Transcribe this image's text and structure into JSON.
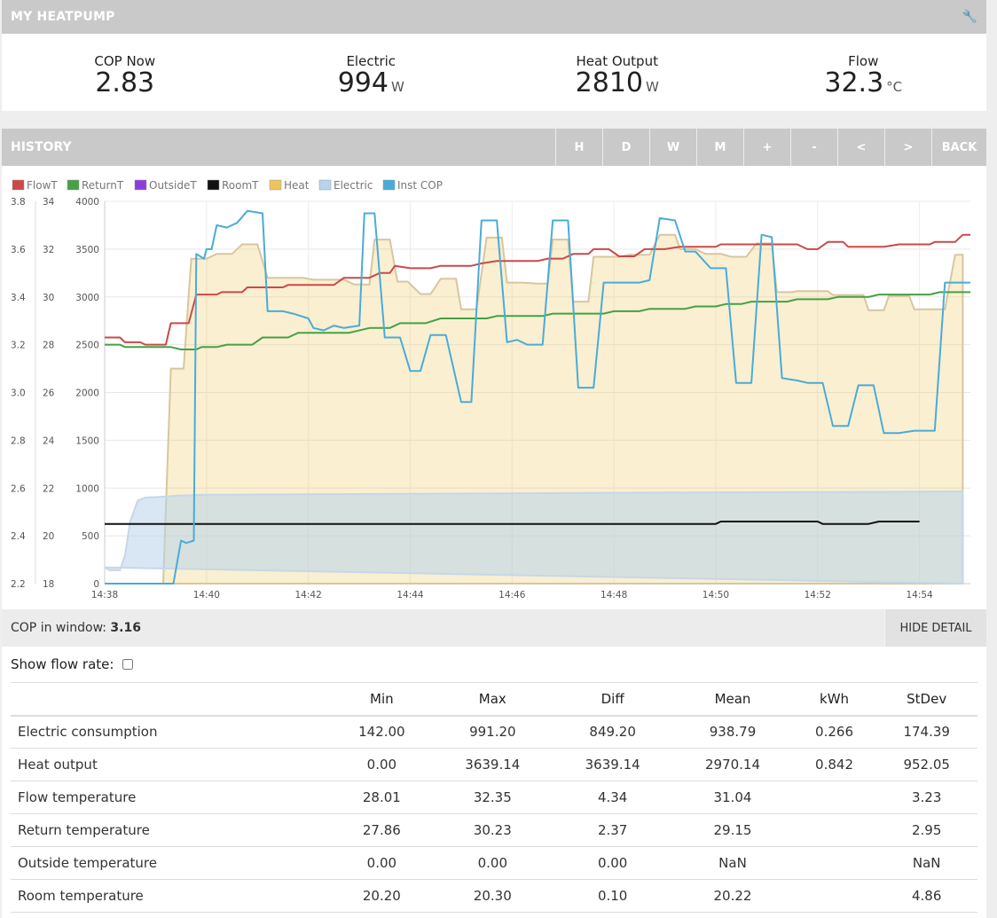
{
  "app": {
    "title": "MY HEATPUMP",
    "settings_icon": "wrench-icon"
  },
  "stats": [
    {
      "label": "COP Now",
      "value": "2.83",
      "unit": ""
    },
    {
      "label": "Electric",
      "value": "994",
      "unit": "W"
    },
    {
      "label": "Heat Output",
      "value": "2810",
      "unit": "W"
    },
    {
      "label": "Flow",
      "value": "32.3",
      "unit": "°C"
    }
  ],
  "history": {
    "title": "HISTORY",
    "buttons": [
      "H",
      "D",
      "W",
      "M",
      "+",
      "-",
      "<",
      ">",
      "BACK"
    ]
  },
  "chart_data": {
    "type": "line",
    "legend": [
      {
        "name": "FlowT",
        "color": "#c94a4a"
      },
      {
        "name": "ReturnT",
        "color": "#45a145"
      },
      {
        "name": "OutsideT",
        "color": "#8a40d8"
      },
      {
        "name": "RoomT",
        "color": "#111111"
      },
      {
        "name": "Heat",
        "color": "#edc55a"
      },
      {
        "name": "Electric",
        "color": "#b8d4ea"
      },
      {
        "name": "Inst COP",
        "color": "#49acd8"
      }
    ],
    "legend_position": "top-left",
    "x_ticks": [
      "14:38",
      "14:40",
      "14:42",
      "14:44",
      "14:46",
      "14:48",
      "14:50",
      "14:52",
      "14:54"
    ],
    "x_range_minutes": [
      0,
      17
    ],
    "y_cop_ticks": [
      "3.8",
      "3.6",
      "3.4",
      "3.2",
      "3.0",
      "2.8",
      "2.6",
      "2.4",
      "2.2"
    ],
    "y_cop_range": [
      2.2,
      3.8
    ],
    "y_temp_ticks": [
      "34",
      "32",
      "30",
      "28",
      "26",
      "24",
      "22",
      "20",
      "18"
    ],
    "y_temp_range": [
      18,
      34
    ],
    "y_power_ticks": [
      "4000",
      "3500",
      "3000",
      "2500",
      "2000",
      "1500",
      "1000",
      "500",
      "0"
    ],
    "y_power_range": [
      0,
      4000
    ],
    "grid": true,
    "series": [
      {
        "name": "FlowT",
        "axis": "temp",
        "points": [
          [
            0,
            28.3
          ],
          [
            0.3,
            28.3
          ],
          [
            0.4,
            28.1
          ],
          [
            0.7,
            28.1
          ],
          [
            0.8,
            28.0
          ],
          [
            1.2,
            28.0
          ],
          [
            1.3,
            28.9
          ],
          [
            1.65,
            28.9
          ],
          [
            1.8,
            30.1
          ],
          [
            2.2,
            30.1
          ],
          [
            2.3,
            30.2
          ],
          [
            2.7,
            30.2
          ],
          [
            2.8,
            30.4
          ],
          [
            3.5,
            30.4
          ],
          [
            3.6,
            30.5
          ],
          [
            4.5,
            30.5
          ],
          [
            4.7,
            30.8
          ],
          [
            5.2,
            30.8
          ],
          [
            5.4,
            31.0
          ],
          [
            5.6,
            31.0
          ],
          [
            5.7,
            31.3
          ],
          [
            6.0,
            31.2
          ],
          [
            6.4,
            31.2
          ],
          [
            6.6,
            31.3
          ],
          [
            7.2,
            31.3
          ],
          [
            7.4,
            31.4
          ],
          [
            7.7,
            31.5
          ],
          [
            8.5,
            31.5
          ],
          [
            8.7,
            31.6
          ],
          [
            9.0,
            31.6
          ],
          [
            9.2,
            31.8
          ],
          [
            9.5,
            31.8
          ],
          [
            9.6,
            32.0
          ],
          [
            9.9,
            32.0
          ],
          [
            10.1,
            31.7
          ],
          [
            10.4,
            31.7
          ],
          [
            10.6,
            32.0
          ],
          [
            11.0,
            32.0
          ],
          [
            11.3,
            32.1
          ],
          [
            12.0,
            32.1
          ],
          [
            12.1,
            32.2
          ],
          [
            13.0,
            32.2
          ],
          [
            13.2,
            32.2
          ],
          [
            13.6,
            32.2
          ],
          [
            13.8,
            32.0
          ],
          [
            14.0,
            32.0
          ],
          [
            14.2,
            32.3
          ],
          [
            14.5,
            32.3
          ],
          [
            14.6,
            32.1
          ],
          [
            15.3,
            32.1
          ],
          [
            15.6,
            32.2
          ],
          [
            16.2,
            32.2
          ],
          [
            16.3,
            32.3
          ],
          [
            16.7,
            32.3
          ],
          [
            16.85,
            32.6
          ],
          [
            17,
            32.6
          ]
        ]
      },
      {
        "name": "ReturnT",
        "axis": "temp",
        "points": [
          [
            0,
            28.0
          ],
          [
            0.3,
            28.0
          ],
          [
            0.4,
            27.9
          ],
          [
            1.2,
            27.9
          ],
          [
            1.3,
            27.9
          ],
          [
            1.5,
            27.8
          ],
          [
            1.8,
            27.8
          ],
          [
            1.9,
            27.9
          ],
          [
            2.2,
            27.9
          ],
          [
            2.4,
            28.0
          ],
          [
            2.9,
            28.0
          ],
          [
            3.1,
            28.3
          ],
          [
            3.6,
            28.3
          ],
          [
            3.8,
            28.5
          ],
          [
            4.8,
            28.5
          ],
          [
            5.2,
            28.7
          ],
          [
            5.6,
            28.7
          ],
          [
            5.8,
            28.9
          ],
          [
            6.3,
            28.9
          ],
          [
            6.6,
            29.1
          ],
          [
            7.5,
            29.1
          ],
          [
            7.7,
            29.2
          ],
          [
            8.6,
            29.2
          ],
          [
            8.8,
            29.3
          ],
          [
            9.8,
            29.3
          ],
          [
            10.0,
            29.4
          ],
          [
            10.5,
            29.4
          ],
          [
            10.7,
            29.5
          ],
          [
            11.4,
            29.5
          ],
          [
            11.6,
            29.6
          ],
          [
            12.0,
            29.6
          ],
          [
            12.2,
            29.7
          ],
          [
            12.5,
            29.7
          ],
          [
            12.7,
            29.8
          ],
          [
            13.4,
            29.8
          ],
          [
            13.6,
            29.9
          ],
          [
            14.2,
            29.9
          ],
          [
            14.4,
            30.0
          ],
          [
            15.0,
            30.0
          ],
          [
            15.2,
            30.1
          ],
          [
            15.6,
            30.1
          ],
          [
            15.8,
            30.1
          ],
          [
            16.2,
            30.1
          ],
          [
            16.4,
            30.2
          ],
          [
            17,
            30.2
          ]
        ]
      },
      {
        "name": "RoomT",
        "axis": "temp",
        "points": [
          [
            0,
            20.5
          ],
          [
            12.0,
            20.5
          ],
          [
            12.1,
            20.6
          ],
          [
            14.0,
            20.6
          ],
          [
            14.1,
            20.5
          ],
          [
            15.0,
            20.5
          ],
          [
            15.2,
            20.6
          ],
          [
            16.0,
            20.6
          ]
        ]
      },
      {
        "name": "Heat",
        "axis": "power",
        "fill": true,
        "points": [
          [
            0,
            0
          ],
          [
            1.15,
            0
          ],
          [
            1.3,
            2250
          ],
          [
            1.55,
            2250
          ],
          [
            1.7,
            3400
          ],
          [
            2.0,
            3400
          ],
          [
            2.2,
            3450
          ],
          [
            2.5,
            3450
          ],
          [
            2.7,
            3550
          ],
          [
            3.0,
            3550
          ],
          [
            3.2,
            3200
          ],
          [
            3.5,
            3200
          ],
          [
            3.9,
            3200
          ],
          [
            4.1,
            3180
          ],
          [
            4.7,
            3180
          ],
          [
            4.9,
            3130
          ],
          [
            5.2,
            3130
          ],
          [
            5.3,
            3600
          ],
          [
            5.6,
            3600
          ],
          [
            5.75,
            3160
          ],
          [
            5.95,
            3160
          ],
          [
            6.2,
            3030
          ],
          [
            6.4,
            3030
          ],
          [
            6.6,
            3190
          ],
          [
            6.9,
            3190
          ],
          [
            7.0,
            2870
          ],
          [
            7.3,
            2870
          ],
          [
            7.5,
            3620
          ],
          [
            7.8,
            3620
          ],
          [
            7.9,
            3150
          ],
          [
            8.2,
            3150
          ],
          [
            8.5,
            3140
          ],
          [
            8.7,
            3140
          ],
          [
            8.8,
            3600
          ],
          [
            9.1,
            3600
          ],
          [
            9.2,
            2950
          ],
          [
            9.5,
            2950
          ],
          [
            9.6,
            3420
          ],
          [
            10.1,
            3420
          ],
          [
            10.3,
            3440
          ],
          [
            10.7,
            3440
          ],
          [
            10.9,
            3650
          ],
          [
            11.2,
            3650
          ],
          [
            11.3,
            3500
          ],
          [
            11.6,
            3500
          ],
          [
            11.8,
            3450
          ],
          [
            12.1,
            3450
          ],
          [
            12.3,
            3420
          ],
          [
            12.6,
            3420
          ],
          [
            12.8,
            3560
          ],
          [
            13.1,
            3560
          ],
          [
            13.2,
            3050
          ],
          [
            13.5,
            3050
          ],
          [
            13.6,
            3060
          ],
          [
            14.2,
            3060
          ],
          [
            14.3,
            3020
          ],
          [
            14.9,
            3020
          ],
          [
            15.0,
            2860
          ],
          [
            15.3,
            2860
          ],
          [
            15.4,
            3010
          ],
          [
            15.8,
            3010
          ],
          [
            15.9,
            2870
          ],
          [
            16.5,
            2870
          ],
          [
            16.7,
            3440
          ],
          [
            16.85,
            3440
          ],
          [
            16.85,
            0
          ]
        ]
      },
      {
        "name": "Electric",
        "axis": "power",
        "fill": true,
        "points": [
          [
            0,
            170
          ],
          [
            0.1,
            140
          ],
          [
            0.3,
            140
          ],
          [
            0.4,
            300
          ],
          [
            0.5,
            650
          ],
          [
            0.65,
            870
          ],
          [
            0.8,
            900
          ],
          [
            1.2,
            910
          ],
          [
            1.4,
            920
          ],
          [
            2.0,
            930
          ],
          [
            4.0,
            935
          ],
          [
            8.0,
            945
          ],
          [
            12.0,
            955
          ],
          [
            15.0,
            960
          ],
          [
            16.85,
            965
          ],
          [
            16.85,
            0
          ]
        ]
      },
      {
        "name": "Inst COP",
        "axis": "cop",
        "points": [
          [
            0,
            2.2
          ],
          [
            1.35,
            2.2
          ],
          [
            1.5,
            2.38
          ],
          [
            1.6,
            2.37
          ],
          [
            1.75,
            2.38
          ],
          [
            1.8,
            3.58
          ],
          [
            1.95,
            3.56
          ],
          [
            2.0,
            3.6
          ],
          [
            2.1,
            3.6
          ],
          [
            2.2,
            3.7
          ],
          [
            2.4,
            3.69
          ],
          [
            2.6,
            3.71
          ],
          [
            2.8,
            3.76
          ],
          [
            3.1,
            3.75
          ],
          [
            3.2,
            3.34
          ],
          [
            3.5,
            3.34
          ],
          [
            3.7,
            3.33
          ],
          [
            4.0,
            3.31
          ],
          [
            4.1,
            3.27
          ],
          [
            4.3,
            3.26
          ],
          [
            4.5,
            3.28
          ],
          [
            4.7,
            3.27
          ],
          [
            5.0,
            3.28
          ],
          [
            5.1,
            3.75
          ],
          [
            5.3,
            3.75
          ],
          [
            5.5,
            3.23
          ],
          [
            5.8,
            3.23
          ],
          [
            6.0,
            3.09
          ],
          [
            6.2,
            3.09
          ],
          [
            6.4,
            3.24
          ],
          [
            6.7,
            3.24
          ],
          [
            7.0,
            2.96
          ],
          [
            7.2,
            2.96
          ],
          [
            7.4,
            3.72
          ],
          [
            7.7,
            3.72
          ],
          [
            7.9,
            3.21
          ],
          [
            8.1,
            3.22
          ],
          [
            8.3,
            3.2
          ],
          [
            8.6,
            3.2
          ],
          [
            8.8,
            3.72
          ],
          [
            9.1,
            3.72
          ],
          [
            9.3,
            3.02
          ],
          [
            9.6,
            3.02
          ],
          [
            9.8,
            3.46
          ],
          [
            10.1,
            3.46
          ],
          [
            10.3,
            3.46
          ],
          [
            10.5,
            3.46
          ],
          [
            10.7,
            3.47
          ],
          [
            10.9,
            3.73
          ],
          [
            11.2,
            3.72
          ],
          [
            11.4,
            3.59
          ],
          [
            11.6,
            3.59
          ],
          [
            11.9,
            3.52
          ],
          [
            12.2,
            3.52
          ],
          [
            12.4,
            3.04
          ],
          [
            12.7,
            3.04
          ],
          [
            12.9,
            3.66
          ],
          [
            13.1,
            3.65
          ],
          [
            13.3,
            3.06
          ],
          [
            13.6,
            3.05
          ],
          [
            13.8,
            3.04
          ],
          [
            14.1,
            3.04
          ],
          [
            14.3,
            2.86
          ],
          [
            14.6,
            2.86
          ],
          [
            14.8,
            3.03
          ],
          [
            15.1,
            3.03
          ],
          [
            15.3,
            2.83
          ],
          [
            15.6,
            2.83
          ],
          [
            15.9,
            2.84
          ],
          [
            16.3,
            2.84
          ],
          [
            16.5,
            3.46
          ],
          [
            17,
            3.46
          ]
        ]
      }
    ]
  },
  "cop_window": {
    "label": "COP in window:",
    "value": "3.16"
  },
  "hide_detail_label": "HIDE DETAIL",
  "show_flow_rate_label": "Show flow rate:",
  "table": {
    "headers": [
      "",
      "Min",
      "Max",
      "Diff",
      "Mean",
      "kWh",
      "StDev"
    ],
    "rows": [
      [
        "Electric consumption",
        "142.00",
        "991.20",
        "849.20",
        "938.79",
        "0.266",
        "174.39"
      ],
      [
        "Heat output",
        "0.00",
        "3639.14",
        "3639.14",
        "2970.14",
        "0.842",
        "952.05"
      ],
      [
        "Flow temperature",
        "28.01",
        "32.35",
        "4.34",
        "31.04",
        "",
        "3.23"
      ],
      [
        "Return temperature",
        "27.86",
        "30.23",
        "2.37",
        "29.15",
        "",
        "2.95"
      ],
      [
        "Outside temperature",
        "0.00",
        "0.00",
        "0.00",
        "NaN",
        "",
        "NaN"
      ],
      [
        "Room temperature",
        "20.20",
        "20.30",
        "0.10",
        "20.22",
        "",
        "4.86"
      ]
    ]
  }
}
